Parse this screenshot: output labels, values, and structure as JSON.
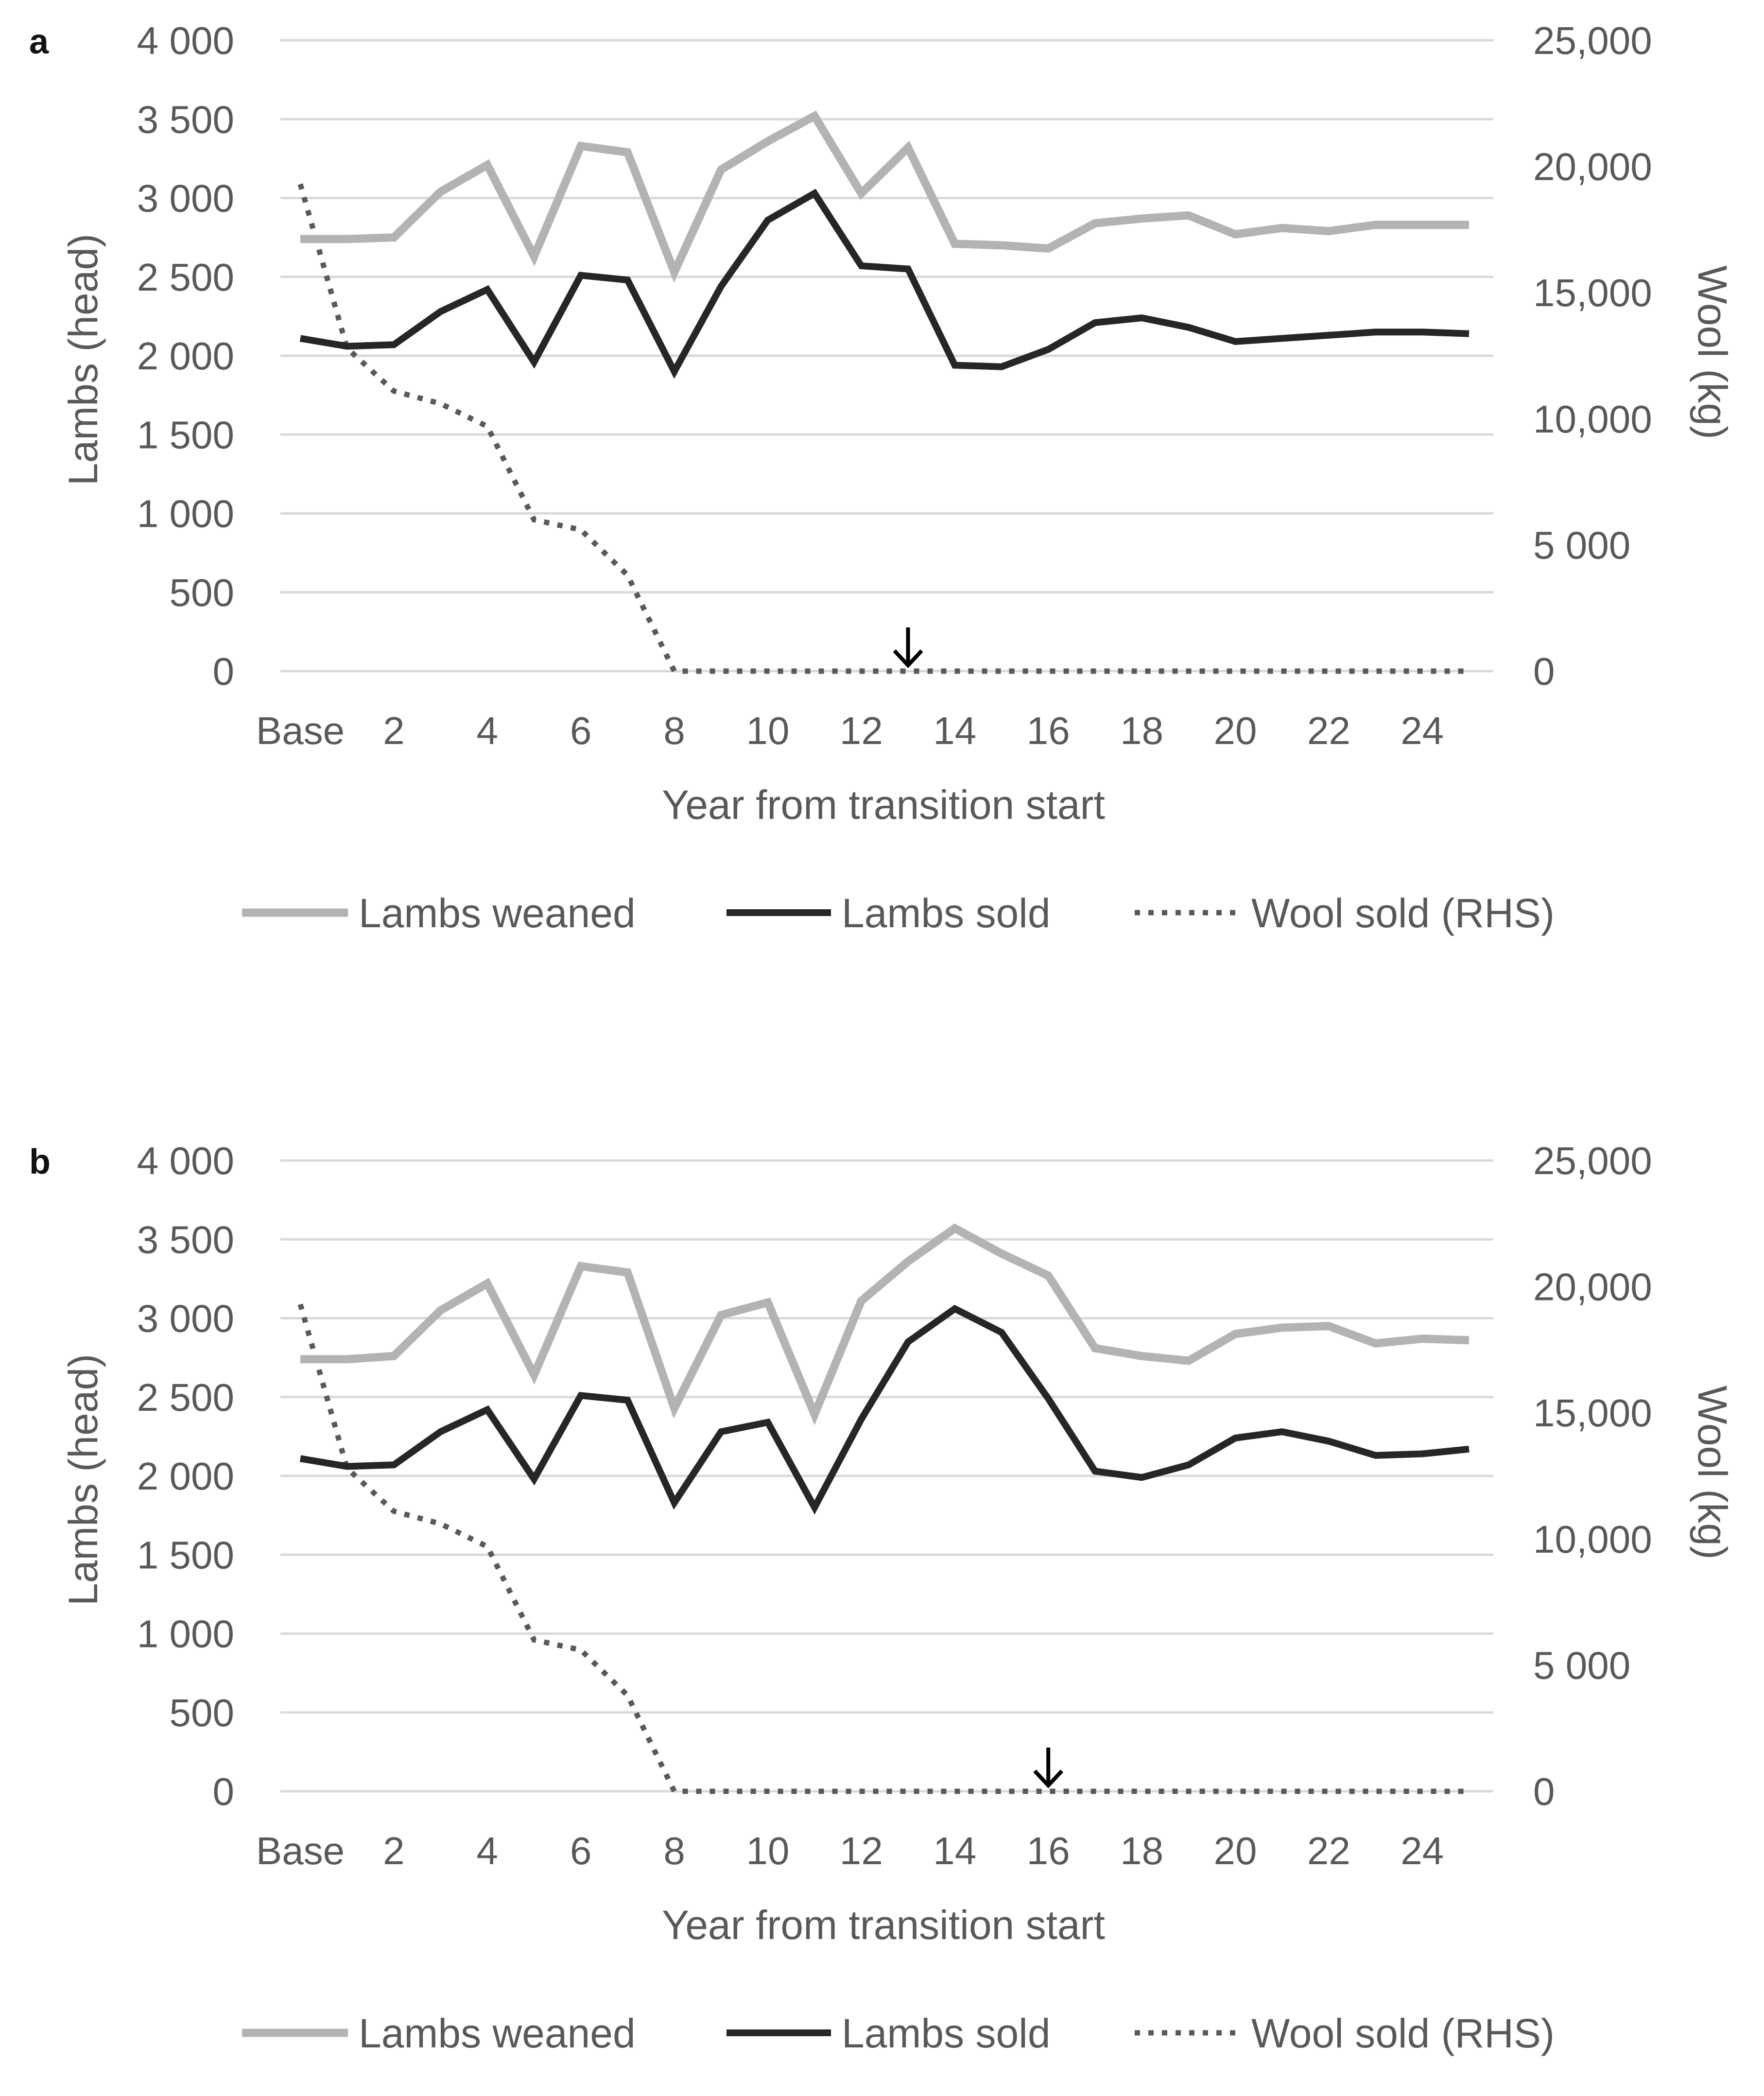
{
  "chart_data": [
    {
      "type": "line",
      "panel": "a",
      "xlabel": "Year from transition start",
      "ylabel": "Lambs (head)",
      "y2label": "Wool (kg)",
      "ylim": [
        0,
        4000
      ],
      "y2lim": [
        0,
        25000
      ],
      "categories": [
        "Base",
        "1",
        "2",
        "3",
        "4",
        "5",
        "6",
        "7",
        "8",
        "9",
        "10",
        "11",
        "12",
        "13",
        "14",
        "15",
        "16",
        "17",
        "18",
        "19",
        "20",
        "21",
        "22",
        "23",
        "24",
        "25"
      ],
      "x_tick_labels": [
        "Base",
        "2",
        "4",
        "6",
        "8",
        "10",
        "12",
        "14",
        "16",
        "18",
        "20",
        "22",
        "24"
      ],
      "y_tick_labels": [
        "0",
        "500",
        "1 000",
        "1 500",
        "2 000",
        "2 500",
        "3 000",
        "3 500",
        "4 000"
      ],
      "y2_tick_labels": [
        "0",
        "5 000",
        "10,000",
        "15,000",
        "20,000",
        "25,000"
      ],
      "arrow_at": "13",
      "series": [
        {
          "name": "Lambs weaned",
          "axis": "left",
          "color": "#b3b3b3",
          "style": "solid",
          "values": [
            2740,
            2740,
            2750,
            3040,
            3210,
            2630,
            3330,
            3290,
            2530,
            3180,
            3360,
            3520,
            3030,
            3320,
            2710,
            2700,
            2680,
            2840,
            2870,
            2890,
            2770,
            2810,
            2790,
            2830,
            2830,
            2830
          ]
        },
        {
          "name": "Lambs sold",
          "axis": "left",
          "color": "#262626",
          "style": "solid",
          "values": [
            2110,
            2060,
            2070,
            2280,
            2420,
            1960,
            2510,
            2480,
            1900,
            2440,
            2860,
            3030,
            2570,
            2550,
            1940,
            1930,
            2040,
            2210,
            2240,
            2180,
            2090,
            2110,
            2130,
            2150,
            2150,
            2140
          ]
        },
        {
          "name": "Wool sold (RHS)",
          "axis": "right",
          "color": "#595959",
          "style": "dotted",
          "values": [
            19300,
            12800,
            11100,
            10600,
            9700,
            6000,
            5600,
            3800,
            0,
            0,
            0,
            0,
            0,
            0,
            0,
            0,
            0,
            0,
            0,
            0,
            0,
            0,
            0,
            0,
            0,
            0
          ]
        }
      ]
    },
    {
      "type": "line",
      "panel": "b",
      "xlabel": "Year from transition start",
      "ylabel": "Lambs (head)",
      "y2label": "Wool (kg)",
      "ylim": [
        0,
        4000
      ],
      "y2lim": [
        0,
        25000
      ],
      "categories": [
        "Base",
        "1",
        "2",
        "3",
        "4",
        "5",
        "6",
        "7",
        "8",
        "9",
        "10",
        "11",
        "12",
        "13",
        "14",
        "15",
        "16",
        "17",
        "18",
        "19",
        "20",
        "21",
        "22",
        "23",
        "24",
        "25"
      ],
      "x_tick_labels": [
        "Base",
        "2",
        "4",
        "6",
        "8",
        "10",
        "12",
        "14",
        "16",
        "18",
        "20",
        "22",
        "24"
      ],
      "y_tick_labels": [
        "0",
        "500",
        "1 000",
        "1 500",
        "2 000",
        "2 500",
        "3 000",
        "3 500",
        "4 000"
      ],
      "y2_tick_labels": [
        "0",
        "5 000",
        "10,000",
        "15,000",
        "20,000",
        "25,000"
      ],
      "arrow_at": "16",
      "series": [
        {
          "name": "Lambs weaned",
          "axis": "left",
          "color": "#b3b3b3",
          "style": "solid",
          "values": [
            2740,
            2740,
            2760,
            3050,
            3220,
            2640,
            3330,
            3290,
            2430,
            3020,
            3100,
            2390,
            3110,
            3360,
            3570,
            3410,
            3270,
            2810,
            2760,
            2730,
            2900,
            2940,
            2950,
            2840,
            2870,
            2860
          ]
        },
        {
          "name": "Lambs sold",
          "axis": "left",
          "color": "#262626",
          "style": "solid",
          "values": [
            2110,
            2060,
            2070,
            2280,
            2420,
            1980,
            2510,
            2480,
            1830,
            2280,
            2340,
            1800,
            2360,
            2850,
            3060,
            2910,
            2490,
            2030,
            1990,
            2070,
            2240,
            2280,
            2220,
            2130,
            2140,
            2170
          ]
        },
        {
          "name": "Wool sold (RHS)",
          "axis": "right",
          "color": "#595959",
          "style": "dotted",
          "values": [
            19300,
            12800,
            11100,
            10600,
            9700,
            6000,
            5600,
            3800,
            0,
            0,
            0,
            0,
            0,
            0,
            0,
            0,
            0,
            0,
            0,
            0,
            0,
            0,
            0,
            0,
            0,
            0
          ]
        }
      ]
    }
  ]
}
